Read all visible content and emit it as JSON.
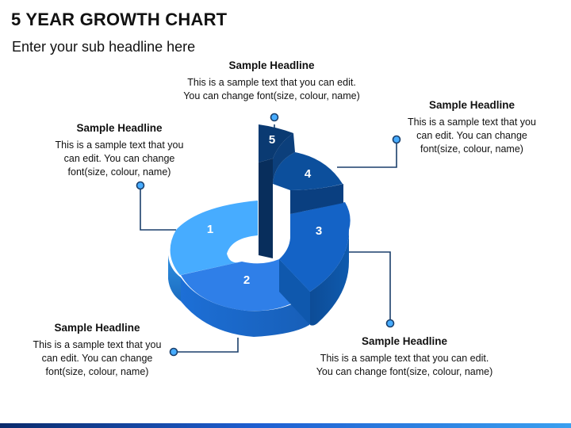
{
  "header": {
    "title": "5 YEAR GROWTH CHART",
    "subtitle": "Enter your sub headline here"
  },
  "segments": [
    {
      "label": "1",
      "color": "#47acff"
    },
    {
      "label": "2",
      "color": "#2f7fe8"
    },
    {
      "label": "3",
      "color": "#1463c6"
    },
    {
      "label": "4",
      "color": "#0c4f9c"
    },
    {
      "label": "5",
      "color": "#0a3a72"
    }
  ],
  "callouts": {
    "step1": {
      "heading": "Sample Headline",
      "body": "This is a sample text that you\ncan edit. You can change\nfont(size, colour, name)"
    },
    "step2": {
      "heading": "Sample Headline",
      "body": "This is a sample text that you\ncan edit. You can change\nfont(size, colour, name)"
    },
    "step3": {
      "heading": "Sample Headline",
      "body": "This is a sample text that you can edit.\nYou can change font(size, colour, name)"
    },
    "step4": {
      "heading": "Sample Headline",
      "body": "This is a sample text that you\ncan edit. You can change\nfont(size, colour, name)"
    },
    "step5": {
      "heading": "Sample Headline",
      "body": "This is a sample text that you can edit.\nYou can change font(size, colour, name)"
    }
  },
  "colors": {
    "connector": "#1a3f6b",
    "dot_fill": "#47acff"
  }
}
